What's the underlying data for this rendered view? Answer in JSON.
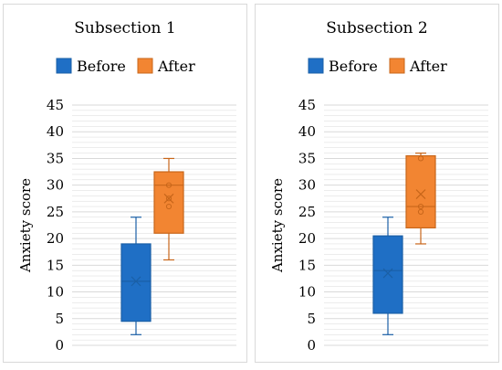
{
  "colors": {
    "before_fill": "#1f6fc5",
    "before_stroke": "#1a5fa6",
    "after_fill": "#f28532",
    "after_stroke": "#c8661a",
    "grid": "#d9d9d9"
  },
  "chart_data": [
    {
      "type": "boxplot",
      "title": "Subsection 1",
      "ylabel": "Anxiety score",
      "ylim": [
        0,
        45
      ],
      "yticks": [
        0,
        5,
        10,
        15,
        20,
        25,
        30,
        35,
        40,
        45
      ],
      "legend": [
        "Before",
        "After"
      ],
      "grid": true,
      "legend_position": "top",
      "series": [
        {
          "name": "Before",
          "min": 2,
          "q1": 4.5,
          "median": 12,
          "q3": 19,
          "max": 24,
          "mean": 12,
          "outliers": []
        },
        {
          "name": "After",
          "min": 16,
          "q1": 21,
          "median": 30,
          "q3": 32.5,
          "max": 35,
          "mean": 27.5,
          "points": [
            30,
            27.5,
            26
          ]
        }
      ]
    },
    {
      "type": "boxplot",
      "title": "Subsection 2",
      "ylabel": "Anxiety score",
      "ylim": [
        0,
        45
      ],
      "yticks": [
        0,
        5,
        10,
        15,
        20,
        25,
        30,
        35,
        40,
        45
      ],
      "legend": [
        "Before",
        "After"
      ],
      "grid": true,
      "legend_position": "top",
      "series": [
        {
          "name": "Before",
          "min": 2,
          "q1": 6,
          "median": 14,
          "q3": 20.5,
          "max": 24,
          "mean": 13.5,
          "outliers": []
        },
        {
          "name": "After",
          "min": 19,
          "q1": 22,
          "median": 26,
          "q3": 35.5,
          "max": 36,
          "mean": 28.3,
          "points": [
            35,
            26,
            25
          ]
        }
      ]
    }
  ]
}
